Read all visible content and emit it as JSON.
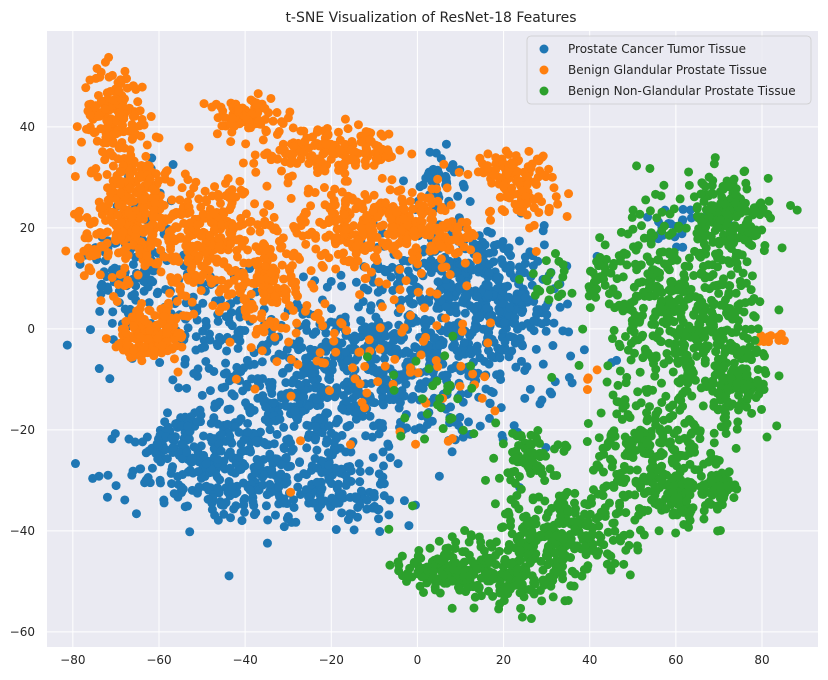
{
  "chart_data": {
    "type": "scatter",
    "title": "t-SNE Visualization of ResNet-18 Features",
    "xlabel": "",
    "ylabel": "",
    "xlim": [
      -86,
      93
    ],
    "ylim": [
      -63,
      59
    ],
    "x_ticks": [
      -80,
      -60,
      -40,
      -20,
      0,
      20,
      40,
      60,
      80
    ],
    "y_ticks": [
      -60,
      -40,
      -20,
      0,
      20,
      40
    ],
    "grid": true,
    "legend_position": "top-right",
    "series": [
      {
        "name": "Prostate Cancer Tumor Tissue",
        "color": "#1f77b4",
        "clusters": [
          {
            "cx": -25,
            "cy": -12,
            "rx": 22,
            "ry": 16,
            "n": 420
          },
          {
            "cx": 5,
            "cy": -5,
            "rx": 25,
            "ry": 16,
            "n": 420
          },
          {
            "cx": -45,
            "cy": -28,
            "rx": 20,
            "ry": 10,
            "n": 260
          },
          {
            "cx": -55,
            "cy": -22,
            "rx": 6,
            "ry": 5,
            "n": 60
          },
          {
            "cx": 10,
            "cy": 12,
            "rx": 18,
            "ry": 10,
            "n": 180
          },
          {
            "cx": 20,
            "cy": 5,
            "rx": 12,
            "ry": 8,
            "n": 120
          },
          {
            "cx": -65,
            "cy": 12,
            "rx": 10,
            "ry": 15,
            "n": 140
          },
          {
            "cx": -48,
            "cy": 2,
            "rx": 10,
            "ry": 10,
            "n": 80
          },
          {
            "cx": 5,
            "cy": 30,
            "rx": 5,
            "ry": 5,
            "n": 40
          },
          {
            "cx": -20,
            "cy": -32,
            "rx": 14,
            "ry": 6,
            "n": 120
          },
          {
            "cx": 60,
            "cy": 20,
            "rx": 6,
            "ry": 6,
            "n": 20
          },
          {
            "cx": 70,
            "cy": 22,
            "rx": 4,
            "ry": 4,
            "n": 10
          }
        ]
      },
      {
        "name": "Benign Glandular Prostate Tissue",
        "color": "#ff7f0e",
        "clusters": [
          {
            "cx": -65,
            "cy": 20,
            "rx": 13,
            "ry": 10,
            "n": 240
          },
          {
            "cx": -70,
            "cy": 42,
            "rx": 7,
            "ry": 9,
            "n": 150
          },
          {
            "cx": -65,
            "cy": 30,
            "rx": 6,
            "ry": 5,
            "n": 70
          },
          {
            "cx": -40,
            "cy": 42,
            "rx": 8,
            "ry": 3,
            "n": 100
          },
          {
            "cx": -48,
            "cy": 18,
            "rx": 12,
            "ry": 10,
            "n": 220
          },
          {
            "cx": -65,
            "cy": -2,
            "rx": 6,
            "ry": 5,
            "n": 90
          },
          {
            "cx": -58,
            "cy": 0,
            "rx": 5,
            "ry": 5,
            "n": 60
          },
          {
            "cx": -35,
            "cy": 8,
            "rx": 8,
            "ry": 8,
            "n": 120
          },
          {
            "cx": -20,
            "cy": 35,
            "rx": 16,
            "ry": 4,
            "n": 160
          },
          {
            "cx": -15,
            "cy": 20,
            "rx": 14,
            "ry": 7,
            "n": 200
          },
          {
            "cx": 0,
            "cy": 20,
            "rx": 8,
            "ry": 10,
            "n": 100
          },
          {
            "cx": 20,
            "cy": 32,
            "rx": 10,
            "ry": 3,
            "n": 70
          },
          {
            "cx": 25,
            "cy": 26,
            "rx": 7,
            "ry": 6,
            "n": 60
          },
          {
            "cx": 10,
            "cy": 18,
            "rx": 6,
            "ry": 4,
            "n": 40
          },
          {
            "cx": -10,
            "cy": -5,
            "rx": 25,
            "ry": 18,
            "n": 90
          },
          {
            "cx": 82,
            "cy": -2,
            "rx": 3,
            "ry": 2,
            "n": 10
          },
          {
            "cx": 40,
            "cy": -10,
            "rx": 2,
            "ry": 2,
            "n": 4
          }
        ]
      },
      {
        "name": "Benign Non-Glandular Prostate Tissue",
        "color": "#2ca02c",
        "clusters": [
          {
            "cx": 55,
            "cy": 5,
            "rx": 12,
            "ry": 18,
            "n": 250
          },
          {
            "cx": 72,
            "cy": 22,
            "rx": 9,
            "ry": 8,
            "n": 180
          },
          {
            "cx": 68,
            "cy": 0,
            "rx": 12,
            "ry": 14,
            "n": 220
          },
          {
            "cx": 75,
            "cy": -10,
            "rx": 7,
            "ry": 7,
            "n": 90
          },
          {
            "cx": 55,
            "cy": -25,
            "rx": 14,
            "ry": 10,
            "n": 230
          },
          {
            "cx": 35,
            "cy": -40,
            "rx": 14,
            "ry": 9,
            "n": 240
          },
          {
            "cx": 20,
            "cy": -48,
            "rx": 15,
            "ry": 7,
            "n": 200
          },
          {
            "cx": 5,
            "cy": -48,
            "rx": 7,
            "ry": 4,
            "n": 80
          },
          {
            "cx": 25,
            "cy": -25,
            "rx": 6,
            "ry": 5,
            "n": 60
          },
          {
            "cx": 60,
            "cy": -33,
            "rx": 8,
            "ry": 4,
            "n": 80
          },
          {
            "cx": 70,
            "cy": -30,
            "rx": 4,
            "ry": 4,
            "n": 40
          },
          {
            "cx": 42,
            "cy": 10,
            "rx": 3,
            "ry": 5,
            "n": 20
          },
          {
            "cx": 5,
            "cy": -15,
            "rx": 15,
            "ry": 12,
            "n": 30
          },
          {
            "cx": 30,
            "cy": 10,
            "rx": 5,
            "ry": 4,
            "n": 20
          }
        ]
      }
    ]
  }
}
